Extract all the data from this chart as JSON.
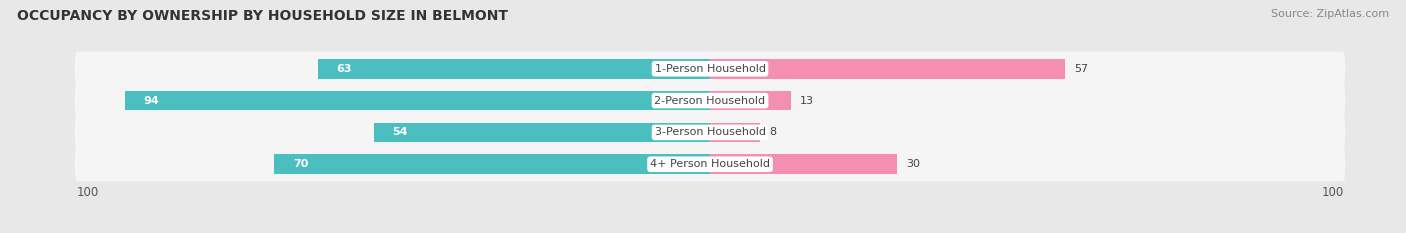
{
  "title": "OCCUPANCY BY OWNERSHIP BY HOUSEHOLD SIZE IN BELMONT",
  "source": "Source: ZipAtlas.com",
  "categories": [
    "1-Person Household",
    "2-Person Household",
    "3-Person Household",
    "4+ Person Household"
  ],
  "owner_values": [
    63,
    94,
    54,
    70
  ],
  "renter_values": [
    57,
    13,
    8,
    30
  ],
  "owner_color": "#4bbfbf",
  "renter_color": "#f48fb1",
  "renter_color2": "#f9c4d5",
  "axis_max": 100,
  "bg_color": "#e8e8e8",
  "row_bg_color": "#f5f5f5",
  "title_fontsize": 10,
  "source_fontsize": 8,
  "label_fontsize": 8,
  "value_fontsize": 8,
  "tick_fontsize": 8.5,
  "bar_height": 0.62
}
